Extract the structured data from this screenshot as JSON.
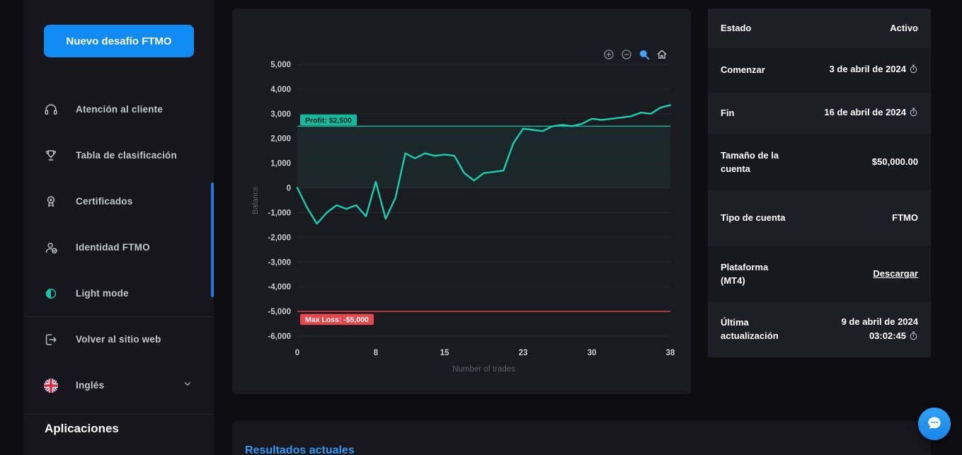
{
  "sidebar": {
    "new_challenge_button": "Nuevo desafío FTMO",
    "items": [
      {
        "label": "Atención al cliente",
        "icon": "headset-icon"
      },
      {
        "label": "Tabla de clasificación",
        "icon": "trophy-icon"
      },
      {
        "label": "Certificados",
        "icon": "certificate-icon"
      },
      {
        "label": "Identidad FTMO",
        "icon": "identity-icon"
      },
      {
        "label": "Light mode",
        "icon": "light-mode-icon"
      },
      {
        "label": "Volver al sitio web",
        "icon": "exit-icon"
      },
      {
        "label": "Inglés",
        "icon": "uk-flag-icon",
        "chevron": "chevron-down-icon"
      }
    ],
    "section_title": "Aplicaciones"
  },
  "chart_data": {
    "type": "line",
    "title": "",
    "xlabel": "Number of trades",
    "ylabel": "Balance",
    "xlim": [
      0,
      38
    ],
    "ylim": [
      -6000,
      5000
    ],
    "x_ticks": [
      0,
      8,
      15,
      23,
      30,
      38
    ],
    "y_ticks": [
      5000,
      4000,
      3000,
      2000,
      1000,
      0,
      -1000,
      -2000,
      -3000,
      -4000,
      -5000,
      -6000
    ],
    "grid": true,
    "legend": "none",
    "series": [
      {
        "name": "Balance",
        "color": "#19d0ae",
        "x": [
          0,
          1,
          2,
          3,
          4,
          5,
          6,
          7,
          8,
          9,
          10,
          11,
          12,
          13,
          14,
          15,
          16,
          17,
          18,
          19,
          20,
          21,
          22,
          23,
          24,
          25,
          26,
          27,
          28,
          29,
          30,
          31,
          32,
          33,
          34,
          35,
          36,
          37,
          38
        ],
        "y": [
          0,
          -800,
          -1450,
          -1000,
          -700,
          -850,
          -700,
          -1150,
          250,
          -1250,
          -400,
          1400,
          1200,
          1400,
          1300,
          1350,
          1300,
          600,
          300,
          600,
          650,
          700,
          1800,
          2400,
          2350,
          2300,
          2500,
          2550,
          2500,
          2600,
          2800,
          2750,
          2800,
          2850,
          2900,
          3050,
          3000,
          3250,
          3350
        ]
      }
    ],
    "reference_lines": [
      {
        "label": "Profit: $2,500",
        "value": 2500,
        "color": "#17b99e"
      },
      {
        "label": "Max Loss: -$5,000",
        "value": -5000,
        "color": "#e5484d"
      }
    ],
    "toolbar_icons": [
      "zoom-in-icon",
      "zoom-out-icon",
      "zoom-select-icon",
      "home-icon"
    ]
  },
  "details_panel": {
    "rows": [
      {
        "label": "Estado",
        "value": "Activo"
      },
      {
        "label": "Comenzar",
        "value": "3 de abril de 2024",
        "clock": true
      },
      {
        "label": "Fin",
        "value": "16 de abril de 2024",
        "clock": true
      },
      {
        "label": "Tamaño de la cuenta",
        "value": "$50,000.00"
      },
      {
        "label": "Tipo de cuenta",
        "value": "FTMO"
      },
      {
        "label": "Plataforma (MT4)",
        "value": "Descargar",
        "link": true
      },
      {
        "label": "Última actualización",
        "value": "9 de abril de 2024 03:02:45",
        "clock": true
      }
    ]
  },
  "bottom_panel": {
    "title": "Resultados actuales"
  },
  "chat": {
    "icon": "chat-bubble-icon"
  },
  "colors": {
    "accent_blue": "#118bf4",
    "line_teal": "#19d0ae",
    "profit_badge": "#17b99e",
    "loss_badge": "#e5484d",
    "link_blue": "#2f9bf4"
  }
}
